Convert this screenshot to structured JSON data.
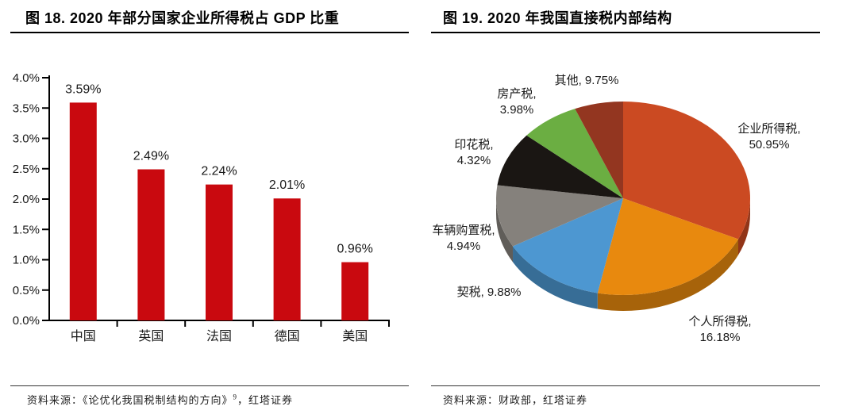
{
  "panels": {
    "left": {
      "title": "图 18. 2020 年部分国家企业所得税占 GDP 比重",
      "source": {
        "prefix": "资料来源：《论优化我国税制结构的方向》",
        "superscript": "9",
        "suffix": "，红塔证券"
      }
    },
    "right": {
      "title": "图 19. 2020 年我国直接税内部结构",
      "source": {
        "text": "资料来源：财政部，红塔证券"
      }
    }
  },
  "colors": {
    "bar_red": "#C9090F",
    "axis": "#000000",
    "label_text": "#1A1A1A"
  },
  "chart_data": [
    {
      "type": "bar",
      "title": "2020 年部分国家企业所得税占 GDP 比重",
      "categories": [
        "中国",
        "英国",
        "法国",
        "德国",
        "美国"
      ],
      "ids": [
        "china",
        "uk",
        "france",
        "germany",
        "usa"
      ],
      "values": [
        3.59,
        2.49,
        2.24,
        2.01,
        0.96
      ],
      "data_labels": [
        "3.59%",
        "2.49%",
        "2.24%",
        "2.01%",
        "0.96%"
      ],
      "unit": "%",
      "xlabel": "",
      "ylabel": "",
      "ylim": [
        0,
        4.0
      ],
      "ytick_step": 0.5,
      "ytick_labels": [
        "0.0%",
        "0.5%",
        "1.0%",
        "1.5%",
        "2.0%",
        "2.5%",
        "3.0%",
        "3.5%",
        "4.0%"
      ],
      "grid": false,
      "legend": "none",
      "bar_color": "#C9090F"
    },
    {
      "type": "pie",
      "style": "3d",
      "title": "2020 年我国直接税内部结构",
      "start_angle_deg": 0,
      "direction": "clockwise",
      "legend": "none",
      "slices": [
        {
          "id": "corporate-income-tax",
          "name": "企业所得税",
          "value": 50.95,
          "color": "#CB4A22",
          "label_lines": [
            "企业所得税,",
            "50.95%"
          ],
          "label_pos": [
            436,
            117
          ],
          "render_span_deg": 115.0
        },
        {
          "id": "personal-income-tax",
          "name": "个人所得税",
          "value": 16.18,
          "color": "#E8890E",
          "label_lines": [
            "个人所得税,",
            "16.18%"
          ],
          "label_pos": [
            374,
            360
          ],
          "render_span_deg": 76.6
        },
        {
          "id": "deed-tax",
          "name": "契税",
          "value": 9.88,
          "color": "#4D97D1",
          "label_lines": [
            "契税, 9.88%"
          ],
          "label_pos": [
            83,
            323
          ],
          "render_span_deg": 48.7
        },
        {
          "id": "vehicle-purchase-tax",
          "name": "车辆购置税",
          "value": 4.94,
          "color": "#85817C",
          "label_lines": [
            "车辆购置税,",
            "4.94%"
          ],
          "label_pos": [
            51,
            245
          ],
          "render_span_deg": 37.5
        },
        {
          "id": "stamp-tax",
          "name": "印花税",
          "value": 4.32,
          "color": "#1A1613",
          "label_lines": [
            "印花税,",
            "4.32%"
          ],
          "label_pos": [
            64,
            137
          ],
          "render_span_deg": 32.7
        },
        {
          "id": "property-tax",
          "name": "房产税",
          "value": 3.98,
          "color": "#6BAE42",
          "label_lines": [
            "房产税,",
            "3.98%"
          ],
          "label_pos": [
            118,
            73
          ],
          "render_span_deg": 27.2
        },
        {
          "id": "other",
          "name": "其他",
          "value": 9.75,
          "color": "#933620",
          "label_lines": [
            "其他, 9.75%"
          ],
          "label_pos": [
            206,
            56
          ],
          "render_span_deg": 22.3
        }
      ],
      "geometry": {
        "cx": 252,
        "cy": 205,
        "rx": 160,
        "ry": 122,
        "depth": 20
      }
    }
  ]
}
